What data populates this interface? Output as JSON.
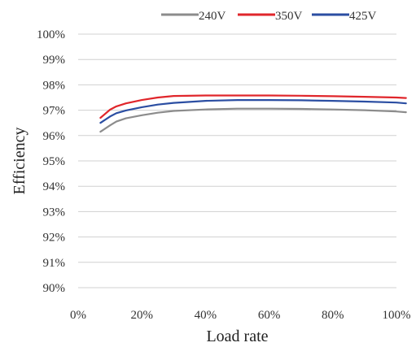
{
  "chart_data": {
    "type": "line",
    "xlabel": "Load rate",
    "ylabel": "Efficiency",
    "xlim": [
      0,
      100
    ],
    "ylim": [
      90,
      100
    ],
    "x_ticks": [
      0,
      20,
      40,
      60,
      80,
      100
    ],
    "x_tick_labels": [
      "0%",
      "20%",
      "40%",
      "60%",
      "80%",
      "100%"
    ],
    "y_ticks": [
      90,
      91,
      92,
      93,
      94,
      95,
      96,
      97,
      98,
      99,
      100
    ],
    "y_tick_labels": [
      "90%",
      "91%",
      "92%",
      "93%",
      "94%",
      "95%",
      "96%",
      "97%",
      "98%",
      "99%",
      "100%"
    ],
    "grid": "horizontal",
    "legend_position": "top",
    "series": [
      {
        "name": "240V",
        "color": "#8c8c8c",
        "x": [
          7,
          10,
          12,
          15,
          20,
          25,
          30,
          40,
          50,
          60,
          70,
          80,
          90,
          100,
          103
        ],
        "y": [
          96.15,
          96.4,
          96.55,
          96.68,
          96.8,
          96.9,
          96.97,
          97.03,
          97.06,
          97.06,
          97.05,
          97.03,
          97.0,
          96.95,
          96.92
        ]
      },
      {
        "name": "350V",
        "color": "#e0262b",
        "x": [
          7,
          10,
          12,
          15,
          20,
          25,
          30,
          40,
          50,
          60,
          70,
          80,
          90,
          100,
          103
        ],
        "y": [
          96.7,
          97.02,
          97.15,
          97.27,
          97.4,
          97.5,
          97.56,
          97.58,
          97.58,
          97.58,
          97.57,
          97.55,
          97.53,
          97.5,
          97.48
        ]
      },
      {
        "name": "425V",
        "color": "#2b4ea2",
        "x": [
          7,
          10,
          12,
          15,
          20,
          25,
          30,
          40,
          50,
          60,
          70,
          80,
          90,
          100,
          103
        ],
        "y": [
          96.5,
          96.75,
          96.88,
          96.99,
          97.12,
          97.22,
          97.29,
          97.37,
          97.4,
          97.4,
          97.39,
          97.37,
          97.34,
          97.3,
          97.27
        ]
      }
    ]
  }
}
